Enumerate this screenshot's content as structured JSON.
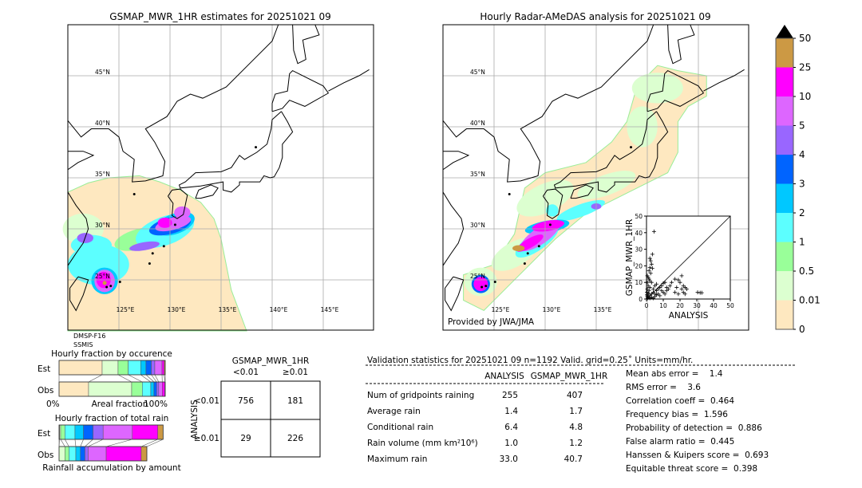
{
  "colors": {
    "bins": [
      "#fee8c0",
      "#dcffd0",
      "#99ff99",
      "#5cffff",
      "#00c8ff",
      "#0064ff",
      "#9966ff",
      "#dd66ff",
      "#ff00ff",
      "#cc9944"
    ],
    "over": "#000000"
  },
  "left_map": {
    "title": "GSMAP_MWR_1HR estimates for 20251021 09",
    "lat_labels": [
      "45°N",
      "40°N",
      "35°N",
      "30°N",
      "25°N"
    ],
    "lon_labels": [
      "125°E",
      "130°E",
      "135°E",
      "140°E",
      "145°E"
    ],
    "sensor_line1": "DMSP-F16",
    "sensor_line2": "SSMIS"
  },
  "right_map": {
    "title": "Hourly Radar-AMeDAS analysis for 20251021 09",
    "lat_labels": [
      "45°N",
      "40°N",
      "35°N",
      "30°N",
      "25°N"
    ],
    "lon_labels": [
      "125°E",
      "130°E",
      "135°E"
    ],
    "credit": "Provided by JWA/JMA"
  },
  "colorbar": {
    "tick_labels": [
      "0",
      "0.01",
      "0.5",
      "1",
      "2",
      "3",
      "4",
      "5",
      "10",
      "25",
      "50"
    ],
    "extend": "max"
  },
  "chart_data": [
    {
      "type": "scatter",
      "xlabel": "ANALYSIS",
      "ylabel": "GSMAP_MWR_1HR",
      "xlim": [
        0,
        50
      ],
      "ylim": [
        0,
        50
      ],
      "xticks": [
        "0",
        "10",
        "20",
        "30",
        "40",
        "50"
      ],
      "yticks": [
        "0",
        "10",
        "20",
        "30",
        "40",
        "50"
      ],
      "diagonal": true,
      "marker": "+",
      "points": [
        [
          4.5,
          40.7
        ],
        [
          3.5,
          27
        ],
        [
          2,
          24.5
        ],
        [
          2.5,
          23
        ],
        [
          3,
          21
        ],
        [
          2,
          19
        ],
        [
          3.5,
          18.5
        ],
        [
          1.5,
          17
        ],
        [
          2.5,
          15.5
        ],
        [
          0.5,
          14
        ],
        [
          1,
          13
        ],
        [
          1.5,
          12
        ],
        [
          0.5,
          10
        ],
        [
          1,
          8
        ],
        [
          2,
          7
        ],
        [
          0.5,
          6
        ],
        [
          1.5,
          5
        ],
        [
          0.3,
          4
        ],
        [
          1,
          3
        ],
        [
          2,
          2
        ],
        [
          0.5,
          1.5
        ],
        [
          1,
          1
        ],
        [
          3,
          1
        ],
        [
          2,
          0.5
        ],
        [
          4,
          0.5
        ],
        [
          5,
          1.5
        ],
        [
          3,
          3
        ],
        [
          4,
          4
        ],
        [
          5,
          3
        ],
        [
          6,
          2.5
        ],
        [
          6,
          5
        ],
        [
          7,
          6
        ],
        [
          8,
          7
        ],
        [
          9,
          8
        ],
        [
          10,
          9.5
        ],
        [
          11,
          10
        ],
        [
          9,
          5
        ],
        [
          10,
          4
        ],
        [
          12,
          5
        ],
        [
          12,
          7
        ],
        [
          13,
          6
        ],
        [
          11,
          3
        ],
        [
          14,
          8
        ],
        [
          15,
          10
        ],
        [
          17,
          12
        ],
        [
          19,
          11.5
        ],
        [
          21,
          14
        ],
        [
          20,
          10
        ],
        [
          18,
          7
        ],
        [
          17,
          4
        ],
        [
          19,
          3
        ],
        [
          21,
          6
        ],
        [
          22,
          8
        ],
        [
          23,
          7
        ],
        [
          24,
          6
        ],
        [
          22,
          4
        ],
        [
          23,
          3
        ],
        [
          30.5,
          4
        ],
        [
          32,
          3.8
        ],
        [
          33,
          3.8
        ],
        [
          6,
          9
        ],
        [
          7,
          3
        ],
        [
          8,
          2
        ],
        [
          4,
          6
        ],
        [
          5,
          8
        ],
        [
          3,
          10
        ],
        [
          2,
          11
        ],
        [
          1,
          3.5
        ],
        [
          0.3,
          2.5
        ],
        [
          0.8,
          0.5
        ]
      ]
    },
    {
      "type": "bar",
      "title": "Hourly fraction by occurence",
      "xlabel": "Areal fraction",
      "x_tick_labels": [
        "0%",
        "100%"
      ],
      "stacked": true,
      "series": [
        {
          "name": "Est",
          "values": [
            0.406,
            0.15,
            0.095,
            0.118,
            0.05,
            0.05,
            0.033,
            0.068,
            0.02,
            0.01
          ]
        },
        {
          "name": "Obs",
          "values": [
            0.278,
            0.406,
            0.1,
            0.08,
            0.03,
            0.025,
            0.02,
            0.033,
            0.025,
            0.003
          ]
        }
      ]
    },
    {
      "type": "bar",
      "title": "Hourly fraction of total rain",
      "xlabel": "Rainfall accumulation by amount",
      "stacked": true,
      "series": [
        {
          "name": "Est",
          "values": [
            0.005,
            0.01,
            0.04,
            0.095,
            0.08,
            0.09,
            0.095,
            0.275,
            0.24,
            0.05
          ]
        },
        {
          "name": "Obs",
          "values": [
            0.0,
            0.055,
            0.038,
            0.065,
            0.043,
            0.043,
            0.03,
            0.17,
            0.33,
            0.053
          ]
        }
      ]
    },
    {
      "type": "table",
      "title": "GSMAP_MWR_1HR",
      "col_headers": [
        "<0.01",
        "≥0.01"
      ],
      "row_axis_label": "ANALYSIS",
      "row_headers": [
        "<0.01",
        "≥0.01"
      ],
      "cells": [
        [
          "756",
          "181"
        ],
        [
          "29",
          "226"
        ]
      ]
    }
  ],
  "stats": {
    "title": "Validation statistics for 20251021 09  n=1192 Valid. grid=0.25˚ Units=mm/hr.",
    "col_headers": [
      "ANALYSIS",
      "GSMAP_MWR_1HR"
    ],
    "rows": [
      {
        "label": "Num of gridpoints raining",
        "analysis": "255",
        "gsmap": "407"
      },
      {
        "label": "Average rain",
        "analysis": "1.4",
        "gsmap": "1.7"
      },
      {
        "label": "Conditional rain",
        "analysis": "6.4",
        "gsmap": "4.8"
      },
      {
        "label": "Rain volume (mm km²10⁶)",
        "analysis": "1.0",
        "gsmap": "1.2"
      },
      {
        "label": "Maximum rain",
        "analysis": "33.0",
        "gsmap": "40.7"
      }
    ],
    "scores": [
      "Mean abs error =    1.4",
      "RMS error =    3.6",
      "Correlation coeff =  0.464",
      "Frequency bias =  1.596",
      "Probability of detection =  0.886",
      "False alarm ratio =  0.445",
      "Hanssen & Kuipers score =  0.693",
      "Equitable threat score =  0.398"
    ]
  }
}
